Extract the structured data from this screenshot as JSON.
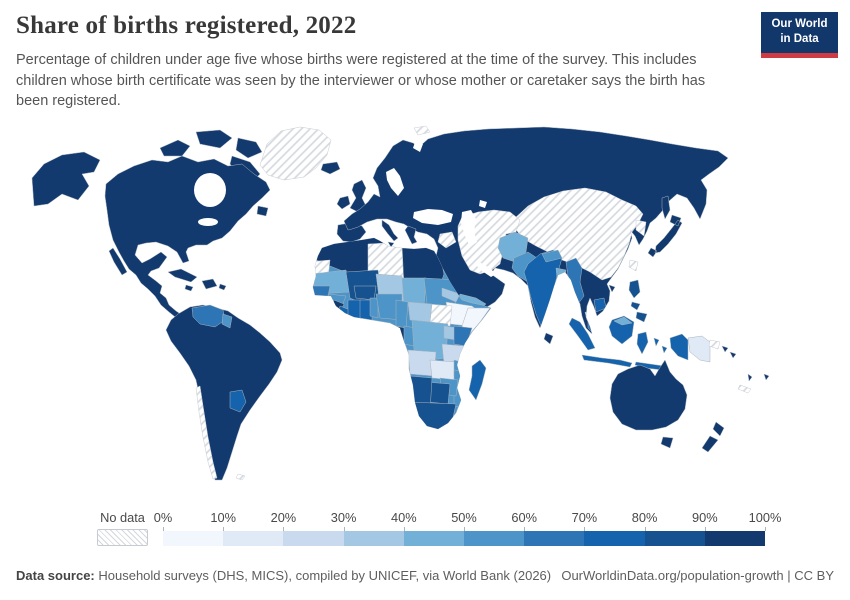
{
  "header": {
    "title": "Share of births registered, 2022",
    "subtitle": "Percentage of children under age five whose births were registered at the time of the survey. This includes children whose birth certificate was seen by the interviewer or whose mother or caretaker says the birth has been registered.",
    "logo": {
      "line1": "Our World",
      "line2": "in Data"
    }
  },
  "legend": {
    "no_data_label": "No data",
    "tick_labels": [
      "0%",
      "10%",
      "20%",
      "30%",
      "40%",
      "50%",
      "60%",
      "70%",
      "80%",
      "90%",
      "100%"
    ]
  },
  "footer": {
    "source_label": "Data source:",
    "source_text": " Household surveys (DHS, MICS), compiled by UNICEF, via World Bank (2026)",
    "link_text": "OurWorldinData.org/population-growth",
    "separator": " | ",
    "license_text": "CC BY"
  },
  "chart_data": {
    "type": "choropleth_map",
    "title": "Share of births registered, 2022",
    "year": 2022,
    "unit": "% of children under age five with registered births",
    "projection": "world",
    "legend_position": "bottom",
    "bins": [
      {
        "range": "0-10%",
        "color": "#f2f7fd"
      },
      {
        "range": "10-20%",
        "color": "#dfeaf6"
      },
      {
        "range": "20-30%",
        "color": "#c9daee"
      },
      {
        "range": "30-40%",
        "color": "#a4c8e4"
      },
      {
        "range": "40-50%",
        "color": "#72b0d7"
      },
      {
        "range": "50-60%",
        "color": "#4d95c8"
      },
      {
        "range": "60-70%",
        "color": "#2d75b5"
      },
      {
        "range": "70-80%",
        "color": "#1563ac"
      },
      {
        "range": "80-90%",
        "color": "#15528f"
      },
      {
        "range": "90-100%",
        "color": "#123a6e"
      }
    ],
    "no_data": {
      "label": "No data",
      "pattern": "diagonal-hatch",
      "line_color": "#d3d8de"
    },
    "regions": {
      "United States": "90-100%",
      "Canada": "90-100%",
      "Mexico": "90-100%",
      "Central America": "90-100%",
      "Cuba": "90-100%",
      "Greenland": "No data",
      "Brazil": "90-100%",
      "Argentina": "90-100%",
      "Colombia": "90-100%",
      "Peru": "90-100%",
      "Venezuela": "70-80%",
      "Paraguay": "70-80%",
      "Chile": "No data",
      "Europe": "90-100%",
      "Russia": "90-100%",
      "Turkey": "90-100%",
      "Kazakhstan": "90-100%",
      "China": "No data",
      "Mongolia": "No data",
      "North Korea": "No data",
      "South Korea": "90-100%",
      "Japan": "90-100%",
      "Iran": "No data",
      "Turkmenistan": "No data",
      "Syria": "No data",
      "Afghanistan": "40-50%",
      "Pakistan": "40-50%",
      "India": "70-80%",
      "Nepal": "50-60%",
      "Bangladesh": "40-50%",
      "Sri Lanka": "90-100%",
      "Myanmar": "60-70%",
      "Thailand": "90-100%",
      "Vietnam": "90-100%",
      "Laos": "90-100%",
      "Cambodia": "70-80%",
      "Malaysia": "60-70%",
      "Indonesia": "70-80%",
      "Philippines": "80-90%",
      "Papua New Guinea": "10-20%",
      "Australia": "90-100%",
      "New Zealand": "90-100%",
      "Saudi Arabia": "90-100%",
      "Iraq": "90-100%",
      "Oman": "90-100%",
      "Yemen": "30-40%",
      "Egypt": "90-100%",
      "Libya": "No data",
      "Algeria": "90-100%",
      "Morocco": "90-100%",
      "Tunisia": "90-100%",
      "Western Sahara": "No data",
      "Mauritania": "40-50%",
      "Senegal": "60-70%",
      "Guinea": "50-60%",
      "Sierra Leone": "90-100%",
      "Liberia": "70-80%",
      "Ivory Coast": "70-80%",
      "Ghana": "70-80%",
      "Burkina Faso": "80-90%",
      "Mali": "80-90%",
      "Niger": "30-40%",
      "Nigeria": "50-60%",
      "Benin": "50-60%",
      "Chad": "40-50%",
      "Sudan": "60-70%",
      "South Sudan": "No data",
      "Eritrea": "30-40%",
      "Ethiopia": "0-10%",
      "Somalia": "0-10%",
      "Central African Republic": "30-40%",
      "Cameroon": "50-60%",
      "Gabon": "90-100%",
      "Congo": "50-60%",
      "DR Congo": "40-50%",
      "Uganda": "30-40%",
      "Kenya": "60-70%",
      "Tanzania": "20-30%",
      "Angola": "20-30%",
      "Zambia": "10-20%",
      "Malawi": "50-60%",
      "Mozambique": "50-60%",
      "Zimbabwe": "50-60%",
      "Namibia": "80-90%",
      "Botswana": "80-90%",
      "South Africa": "80-90%",
      "Madagascar": "70-80%",
      "Fiji": "90-100%",
      "Solomon Islands": "90-100%",
      "New Caledonia": "No data",
      "Falkland Islands": "No data"
    }
  }
}
